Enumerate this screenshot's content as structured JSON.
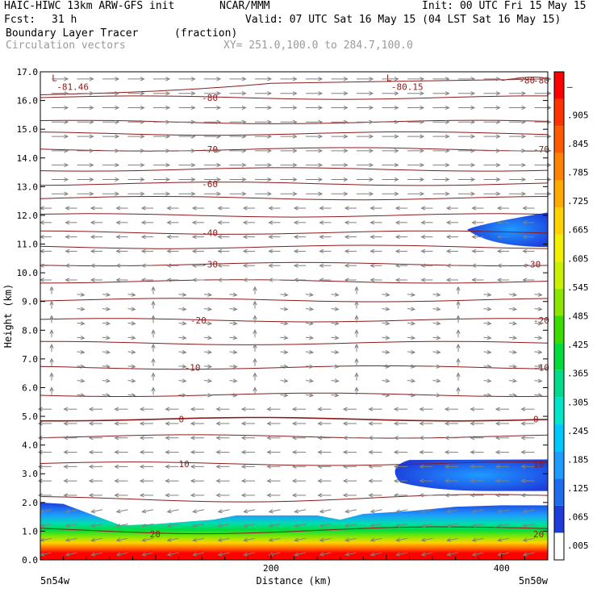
{
  "header": {
    "model": "HAIC-HIWC 13km ARW-GFS init",
    "org": "NCAR/MMM",
    "init": "Init: 00 UTC Fri 15 May 15",
    "fcst_label": "Fcst:",
    "fcst_value": "31 h",
    "valid": "Valid: 07 UTC Sat 16 May 15 (04 LST Sat 16 May 15)",
    "field": "Boundary Layer Tracer",
    "units": "(fraction)",
    "overlay": "Circulation vectors",
    "xy_range": "XY= 251.0,100.0 to 284.7,100.0"
  },
  "colors": {
    "contour": "#8b1a1a",
    "vector": "#808080",
    "scale": [
      "#ffffff",
      "#1e3cdc",
      "#1e6cf0",
      "#1e9cff",
      "#00c8ff",
      "#00e6c8",
      "#00dc8c",
      "#00dc3c",
      "#3cdc00",
      "#8ce600",
      "#c8f000",
      "#f0f000",
      "#ffd200",
      "#ffaa00",
      "#ff8200",
      "#ff5a00",
      "#ff3200",
      "#ff0000"
    ]
  },
  "chart_data": {
    "type": "heatmap",
    "subtype": "vertical cross-section with contours and wind vectors",
    "ylabel": "Height (km)",
    "xlabel": "Distance (km)",
    "xlim": [
      0,
      440
    ],
    "ylim": [
      0,
      17
    ],
    "y_ticks": [
      "0.0",
      "1.0",
      "2.0",
      "3.0",
      "4.0",
      "5.0",
      "6.0",
      "7.0",
      "8.0",
      "9.0",
      "10.0",
      "11.0",
      "12.0",
      "13.0",
      "14.0",
      "15.0",
      "16.0",
      "17.0"
    ],
    "x_ticks": [
      {
        "value": 200,
        "label": "200"
      },
      {
        "value": 400,
        "label": "400"
      }
    ],
    "x_end_labels": {
      "left": "5n54w",
      "right": "5n50w"
    },
    "colorbar_labels": [
      ".005",
      ".065",
      ".125",
      ".185",
      ".245",
      ".305",
      ".365",
      ".425",
      ".485",
      ".545",
      ".605",
      ".665",
      ".725",
      ".785",
      ".845",
      ".905",
      "—"
    ],
    "contours": [
      {
        "value": -80,
        "label": "-80"
      },
      {
        "value": -70,
        "label": "-70"
      },
      {
        "value": -60,
        "label": "-60"
      },
      {
        "value": -40,
        "label": "-40"
      },
      {
        "value": -30,
        "label": "-30"
      },
      {
        "value": -20,
        "label": "-20"
      },
      {
        "value": -10,
        "label": "-10"
      },
      {
        "value": 0,
        "label": "0"
      },
      {
        "value": 10,
        "label": "10"
      },
      {
        "value": 20,
        "label": "20"
      }
    ],
    "extrema": [
      {
        "marker": "L",
        "label": "-81.46",
        "x": 10,
        "y": 16.7
      },
      {
        "marker": "L",
        "label": "-80.15",
        "x": 300,
        "y": 16.7
      }
    ],
    "tracer_regions": [
      {
        "name": "surface boundary layer",
        "x_range": [
          0,
          440
        ],
        "top_km": 2.0
      },
      {
        "name": "layer near 3 km",
        "x_range": [
          300,
          440
        ],
        "y_range": [
          2.4,
          3.5
        ]
      },
      {
        "name": "layer near 11.5 km",
        "x_range": [
          370,
          440
        ],
        "y_range": [
          10.9,
          12.1
        ]
      }
    ]
  }
}
